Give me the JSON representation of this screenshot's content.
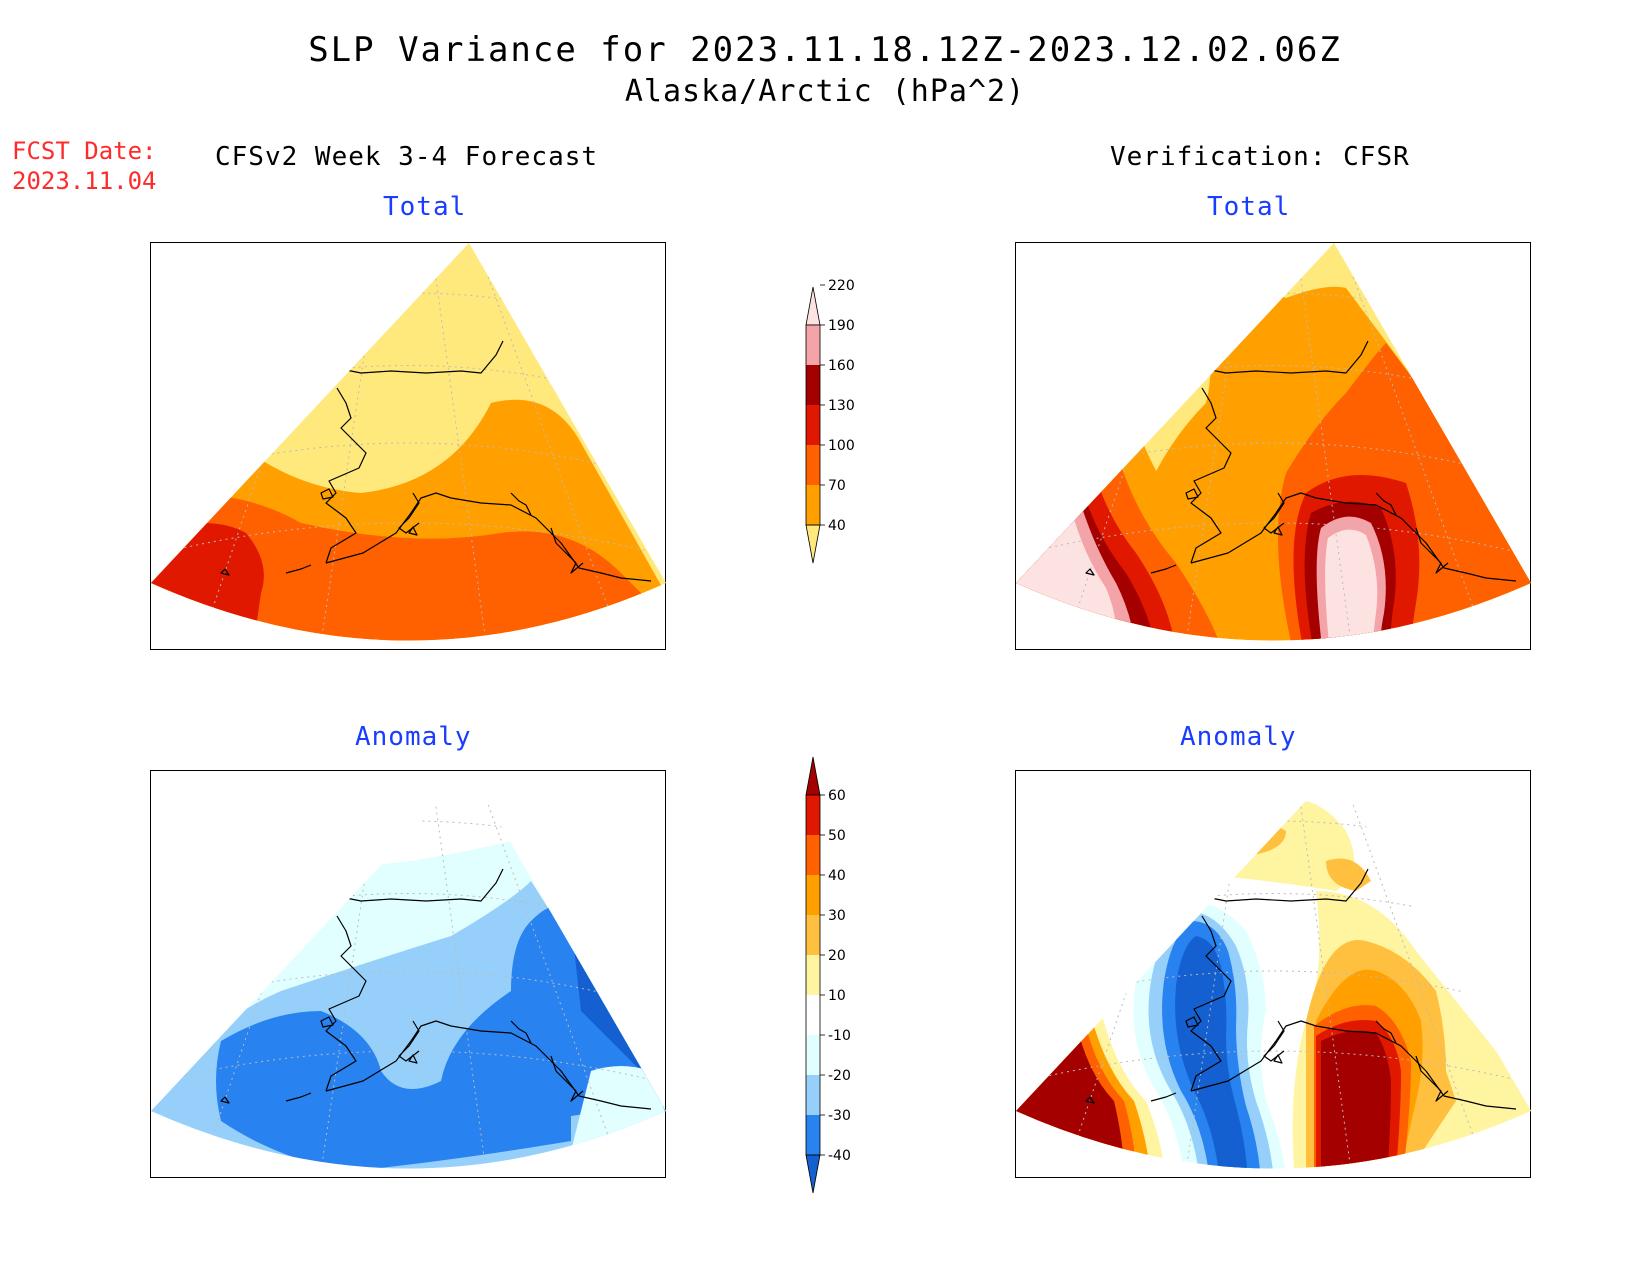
{
  "header": {
    "title": "SLP Variance for 2023.11.18.12Z-2023.12.02.06Z",
    "subtitle": "Alaska/Arctic (hPa^2)",
    "fcst_date_label": "FCST Date:",
    "fcst_date_value": "2023.11.04"
  },
  "columns": {
    "left_heading": "CFSv2 Week 3-4 Forecast",
    "right_heading": "Verification: CFSR"
  },
  "panels": {
    "forecast_total_title": "Total",
    "forecast_anomaly_title": "Anomaly",
    "verification_total_title": "Total",
    "verification_anomaly_title": "Anomaly"
  },
  "colorbars": {
    "total": {
      "levels": [
        "40",
        "70",
        "100",
        "130",
        "160",
        "190",
        "220"
      ],
      "colors": [
        "#ffe87c",
        "#ffa000",
        "#ff6000",
        "#e11800",
        "#a50000",
        "#f4a3a8",
        "#fde2e2"
      ]
    },
    "anomaly": {
      "levels": [
        "-40",
        "-30",
        "-20",
        "-10",
        "10",
        "20",
        "30",
        "40",
        "50",
        "60"
      ],
      "colors": [
        "#1560d0",
        "#2882f0",
        "#96d0fa",
        "#e1ffff",
        "#ffffff",
        "#fff4a0",
        "#ffc040",
        "#ffa000",
        "#ff6000",
        "#e11800",
        "#a50000"
      ]
    }
  }
}
